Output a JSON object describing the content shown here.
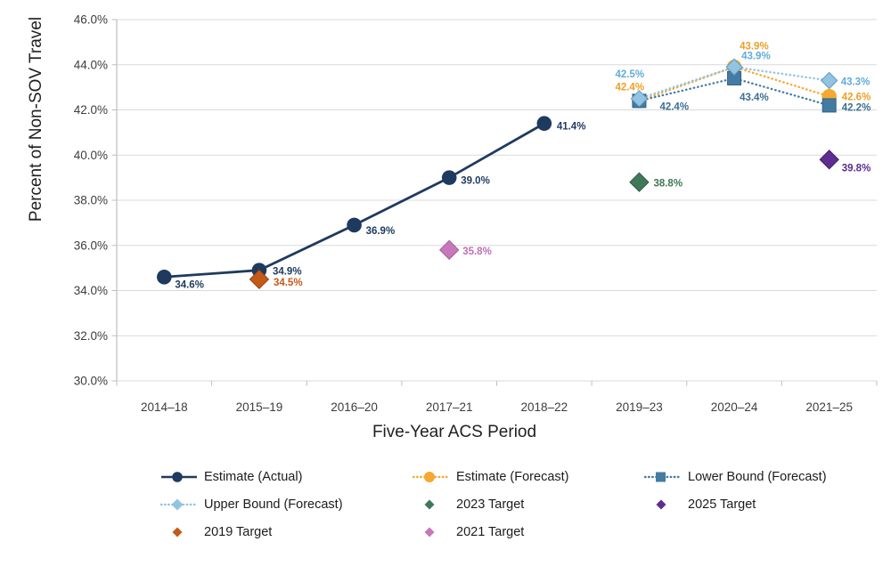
{
  "chart_data": {
    "type": "line",
    "title": "",
    "xlabel": "Five-Year ACS Period",
    "ylabel": "Percent of Non-SOV Travel",
    "categories": [
      "2014–18",
      "2015–19",
      "2016–20",
      "2017–21",
      "2018–22",
      "2019–23",
      "2020–24",
      "2021–25"
    ],
    "ylim": [
      30,
      46
    ],
    "ytick_step": 2,
    "ytick_labels": [
      "30.0%",
      "32.0%",
      "34.0%",
      "36.0%",
      "38.0%",
      "40.0%",
      "42.0%",
      "44.0%",
      "46.0%"
    ],
    "grid": true,
    "legend_position": "bottom",
    "series": [
      {
        "name": "Estimate (Actual)",
        "line_style": "solid",
        "marker": "circle",
        "color": "#1e3a5f",
        "label_color": "#1e3a5f",
        "points": [
          {
            "category_index": 0,
            "value": 34.6,
            "label": "34.6%",
            "label_dx": 12,
            "label_dy": 12
          },
          {
            "category_index": 1,
            "value": 34.9,
            "label": "34.9%",
            "label_dx": 15,
            "label_dy": 5
          },
          {
            "category_index": 2,
            "value": 36.9,
            "label": "36.9%",
            "label_dx": 13,
            "label_dy": 10
          },
          {
            "category_index": 3,
            "value": 39.0,
            "label": "39.0%",
            "label_dx": 13,
            "label_dy": 7
          },
          {
            "category_index": 4,
            "value": 41.4,
            "label": "41.4%",
            "label_dx": 14,
            "label_dy": 7
          }
        ]
      },
      {
        "name": "Estimate (Forecast)",
        "line_style": "dotted",
        "marker": "circle",
        "color": "#f6a831",
        "label_color": "#ef9f26",
        "points": [
          {
            "category_index": 5,
            "value": 42.4,
            "label": "42.4%",
            "label_dx": -27,
            "label_dy": -12
          },
          {
            "category_index": 6,
            "value": 43.9,
            "label": "43.9%",
            "label_dx": 6,
            "label_dy": -20
          },
          {
            "category_index": 7,
            "value": 42.6,
            "label": "42.6%",
            "label_dx": 14,
            "label_dy": 4
          }
        ]
      },
      {
        "name": "Lower Bound (Forecast)",
        "line_style": "dotted",
        "marker": "square",
        "color": "#447ba3",
        "edge": "#2e6389",
        "label_color": "#3c6f94",
        "points": [
          {
            "category_index": 5,
            "value": 42.4,
            "label": "42.4%",
            "label_dx": 23,
            "label_dy": 10
          },
          {
            "category_index": 6,
            "value": 43.4,
            "label": "43.4%",
            "label_dx": 6,
            "label_dy": 25
          },
          {
            "category_index": 7,
            "value": 42.2,
            "label": "42.2%",
            "label_dx": 14,
            "label_dy": 6
          }
        ]
      },
      {
        "name": "Upper Bound (Forecast)",
        "line_style": "dotted",
        "marker": "diamond",
        "color": "#92c3e2",
        "edge": "#5f9cc4",
        "label_color": "#62abd8",
        "points": [
          {
            "category_index": 5,
            "value": 42.5,
            "label": "42.5%",
            "label_dx": -27,
            "label_dy": -24
          },
          {
            "category_index": 6,
            "value": 43.9,
            "label": "43.9%",
            "label_dx": 8,
            "label_dy": -9
          },
          {
            "category_index": 7,
            "value": 43.3,
            "label": "43.3%",
            "label_dx": 13,
            "label_dy": 5
          }
        ]
      },
      {
        "name": "2023 Target",
        "line_style": "none",
        "marker": "diamond-large",
        "color": "#40795a",
        "edge": "#2e5a41",
        "label_color": "#3e7758",
        "points": [
          {
            "category_index": 5,
            "value": 38.8,
            "label": "38.8%",
            "label_dx": 16,
            "label_dy": 5
          }
        ]
      },
      {
        "name": "2025 Target",
        "line_style": "none",
        "marker": "diamond-large",
        "color": "#5e2d91",
        "edge": "#431f6b",
        "label_color": "#5c2d91",
        "points": [
          {
            "category_index": 7,
            "value": 39.8,
            "label": "39.8%",
            "label_dx": 14,
            "label_dy": 13
          }
        ]
      },
      {
        "name": "2019 Target",
        "line_style": "none",
        "marker": "diamond-large",
        "color": "#c45a18",
        "edge": "#96420f",
        "label_color": "#c45a18",
        "points": [
          {
            "category_index": 1,
            "value": 34.5,
            "label": "34.5%",
            "label_dx": 16,
            "label_dy": 7
          }
        ]
      },
      {
        "name": "2021 Target",
        "line_style": "none",
        "marker": "diamond-large",
        "color": "#c678bb",
        "edge": "#a25d99",
        "label_color": "#bf6eb6",
        "points": [
          {
            "category_index": 3,
            "value": 35.8,
            "label": "35.8%",
            "label_dx": 15,
            "label_dy": 5
          }
        ]
      }
    ]
  },
  "legend": {
    "items": [
      {
        "label": "Estimate (Actual)",
        "swatch": "line-circle",
        "color": "#1e3a5f"
      },
      {
        "label": "Estimate (Forecast)",
        "swatch": "dot-circle",
        "color": "#f6a831"
      },
      {
        "label": "Lower Bound (Forecast)",
        "swatch": "dot-square",
        "color": "#447ba3"
      },
      {
        "label": "Upper Bound (Forecast)",
        "swatch": "dot-diamond",
        "color": "#92c3e2"
      },
      {
        "label": "2023 Target",
        "swatch": "diamond",
        "color": "#40795a"
      },
      {
        "label": "2025 Target",
        "swatch": "diamond",
        "color": "#5e2d91"
      },
      {
        "label": "2019 Target",
        "swatch": "diamond",
        "color": "#c45a18"
      },
      {
        "label": "2021 Target",
        "swatch": "diamond",
        "color": "#c678bb"
      }
    ]
  }
}
